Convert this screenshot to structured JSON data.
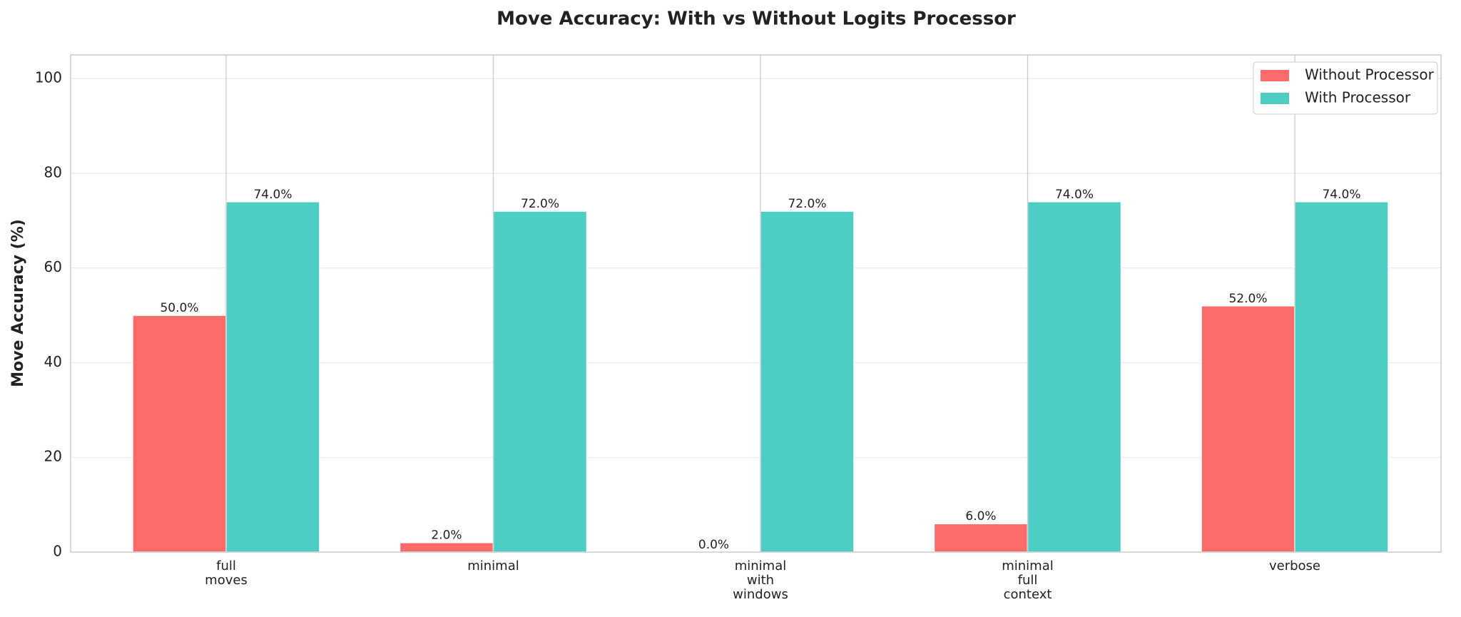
{
  "chart_data": {
    "type": "bar",
    "title": "Move Accuracy: With vs Without Logits Processor",
    "y_label": "Move Accuracy (%)",
    "categories": [
      "full\nmoves",
      "minimal",
      "minimal\nwith\nwindows",
      "minimal\nfull\ncontext",
      "verbose"
    ],
    "series": [
      {
        "name": "Without Processor",
        "color": "#ff6b6b",
        "values": [
          50,
          2,
          0,
          6,
          52
        ],
        "value_labels": [
          "50.0%",
          "2.0%",
          "0.0%",
          "6.0%",
          "52.0%"
        ]
      },
      {
        "name": "With Processor",
        "color": "#4ecdc4",
        "values": [
          74,
          72,
          72,
          74,
          74
        ],
        "value_labels": [
          "74.0%",
          "72.0%",
          "72.0%",
          "74.0%",
          "74.0%"
        ]
      }
    ],
    "ylim": [
      0,
      105
    ],
    "yticks": [
      0,
      20,
      40,
      60,
      80,
      100
    ],
    "grid": true,
    "legend": "upper right"
  }
}
